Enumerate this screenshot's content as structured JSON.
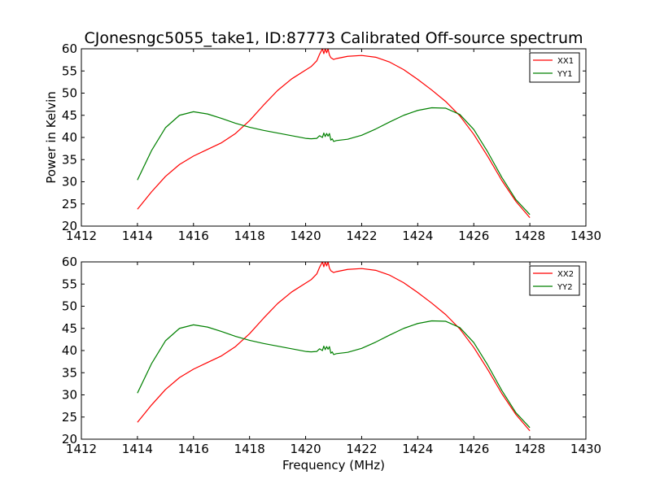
{
  "chart_data": [
    {
      "type": "line",
      "title": "CJonesngc5055_take1, ID:87773 Calibrated Off-source spectrum",
      "xlabel": "",
      "ylabel": "Power in Kelvin",
      "xlim": [
        1412,
        1430
      ],
      "ylim": [
        20,
        60
      ],
      "xticks": [
        "1412",
        "1414",
        "1416",
        "1418",
        "1420",
        "1422",
        "1424",
        "1426",
        "1428",
        "1430"
      ],
      "yticks": [
        "20",
        "25",
        "30",
        "35",
        "40",
        "45",
        "50",
        "55",
        "60"
      ],
      "grid": false,
      "legend_position": "top-right",
      "series": [
        {
          "name": "XX1",
          "color": "#ff0000",
          "x": [
            1414.0,
            1414.5,
            1415.0,
            1415.5,
            1416.0,
            1416.5,
            1417.0,
            1417.5,
            1418.0,
            1418.5,
            1419.0,
            1419.5,
            1420.0,
            1420.2,
            1420.4,
            1420.5,
            1420.6,
            1420.65,
            1420.7,
            1420.75,
            1420.8,
            1420.85,
            1420.9,
            1420.95,
            1421.0,
            1421.1,
            1421.5,
            1422.0,
            1422.5,
            1423.0,
            1423.5,
            1424.0,
            1424.5,
            1425.0,
            1425.5,
            1426.0,
            1426.5,
            1427.0,
            1427.5,
            1428.0
          ],
          "y": [
            23.8,
            27.7,
            31.2,
            33.9,
            35.8,
            37.3,
            38.8,
            40.9,
            43.8,
            47.3,
            50.6,
            53.2,
            55.2,
            56.0,
            57.3,
            58.8,
            60.0,
            58.9,
            60.0,
            59.1,
            60.0,
            58.6,
            58.0,
            57.8,
            57.6,
            57.8,
            58.3,
            58.5,
            58.1,
            57.0,
            55.3,
            53.1,
            50.7,
            48.1,
            44.9,
            40.7,
            35.7,
            30.3,
            25.6,
            21.9
          ]
        },
        {
          "name": "YY1",
          "color": "#008000",
          "x": [
            1414.0,
            1414.5,
            1415.0,
            1415.5,
            1416.0,
            1416.5,
            1417.0,
            1417.5,
            1418.0,
            1418.5,
            1419.0,
            1419.5,
            1420.0,
            1420.2,
            1420.4,
            1420.5,
            1420.6,
            1420.65,
            1420.7,
            1420.75,
            1420.8,
            1420.85,
            1420.9,
            1420.95,
            1421.0,
            1421.1,
            1421.5,
            1422.0,
            1422.5,
            1423.0,
            1423.5,
            1424.0,
            1424.5,
            1425.0,
            1425.5,
            1426.0,
            1426.5,
            1427.0,
            1427.5,
            1428.0
          ],
          "y": [
            30.4,
            37.0,
            42.2,
            45.0,
            45.8,
            45.3,
            44.3,
            43.2,
            42.3,
            41.6,
            41.0,
            40.4,
            39.8,
            39.7,
            39.8,
            40.4,
            40.0,
            41.0,
            40.2,
            40.9,
            40.3,
            40.9,
            39.4,
            39.7,
            39.1,
            39.3,
            39.6,
            40.5,
            41.9,
            43.5,
            45.0,
            46.1,
            46.7,
            46.6,
            45.2,
            41.8,
            36.7,
            31.0,
            26.0,
            22.6
          ]
        }
      ]
    },
    {
      "type": "line",
      "title": "",
      "xlabel": "Frequency (MHz)",
      "ylabel": "",
      "xlim": [
        1412,
        1430
      ],
      "ylim": [
        20,
        60
      ],
      "xticks": [
        "1412",
        "1414",
        "1416",
        "1418",
        "1420",
        "1422",
        "1424",
        "1426",
        "1428",
        "1430"
      ],
      "yticks": [
        "20",
        "25",
        "30",
        "35",
        "40",
        "45",
        "50",
        "55",
        "60"
      ],
      "grid": false,
      "legend_position": "top-right",
      "series": [
        {
          "name": "XX2",
          "color": "#ff0000",
          "x": [
            1414.0,
            1414.5,
            1415.0,
            1415.5,
            1416.0,
            1416.5,
            1417.0,
            1417.5,
            1418.0,
            1418.5,
            1419.0,
            1419.5,
            1420.0,
            1420.2,
            1420.4,
            1420.5,
            1420.6,
            1420.65,
            1420.7,
            1420.75,
            1420.8,
            1420.85,
            1420.9,
            1420.95,
            1421.0,
            1421.1,
            1421.5,
            1422.0,
            1422.5,
            1423.0,
            1423.5,
            1424.0,
            1424.5,
            1425.0,
            1425.5,
            1426.0,
            1426.5,
            1427.0,
            1427.5,
            1428.0
          ],
          "y": [
            23.8,
            27.7,
            31.2,
            33.9,
            35.8,
            37.3,
            38.8,
            40.9,
            43.8,
            47.3,
            50.6,
            53.2,
            55.2,
            56.0,
            57.3,
            58.8,
            60.0,
            58.9,
            60.0,
            59.1,
            60.0,
            58.6,
            58.0,
            57.8,
            57.6,
            57.8,
            58.3,
            58.5,
            58.1,
            57.0,
            55.3,
            53.1,
            50.7,
            48.1,
            44.9,
            40.7,
            35.7,
            30.3,
            25.6,
            21.9
          ]
        },
        {
          "name": "YY2",
          "color": "#008000",
          "x": [
            1414.0,
            1414.5,
            1415.0,
            1415.5,
            1416.0,
            1416.5,
            1417.0,
            1417.5,
            1418.0,
            1418.5,
            1419.0,
            1419.5,
            1420.0,
            1420.2,
            1420.4,
            1420.5,
            1420.6,
            1420.65,
            1420.7,
            1420.75,
            1420.8,
            1420.85,
            1420.9,
            1420.95,
            1421.0,
            1421.1,
            1421.5,
            1422.0,
            1422.5,
            1423.0,
            1423.5,
            1424.0,
            1424.5,
            1425.0,
            1425.5,
            1426.0,
            1426.5,
            1427.0,
            1427.5,
            1428.0
          ],
          "y": [
            30.4,
            37.0,
            42.2,
            45.0,
            45.8,
            45.3,
            44.3,
            43.2,
            42.3,
            41.6,
            41.0,
            40.4,
            39.8,
            39.7,
            39.8,
            40.4,
            40.0,
            41.0,
            40.2,
            40.9,
            40.3,
            40.9,
            39.4,
            39.7,
            39.1,
            39.3,
            39.6,
            40.5,
            41.9,
            43.5,
            45.0,
            46.1,
            46.7,
            46.6,
            45.2,
            41.8,
            36.7,
            31.0,
            26.0,
            22.6
          ]
        }
      ]
    }
  ]
}
